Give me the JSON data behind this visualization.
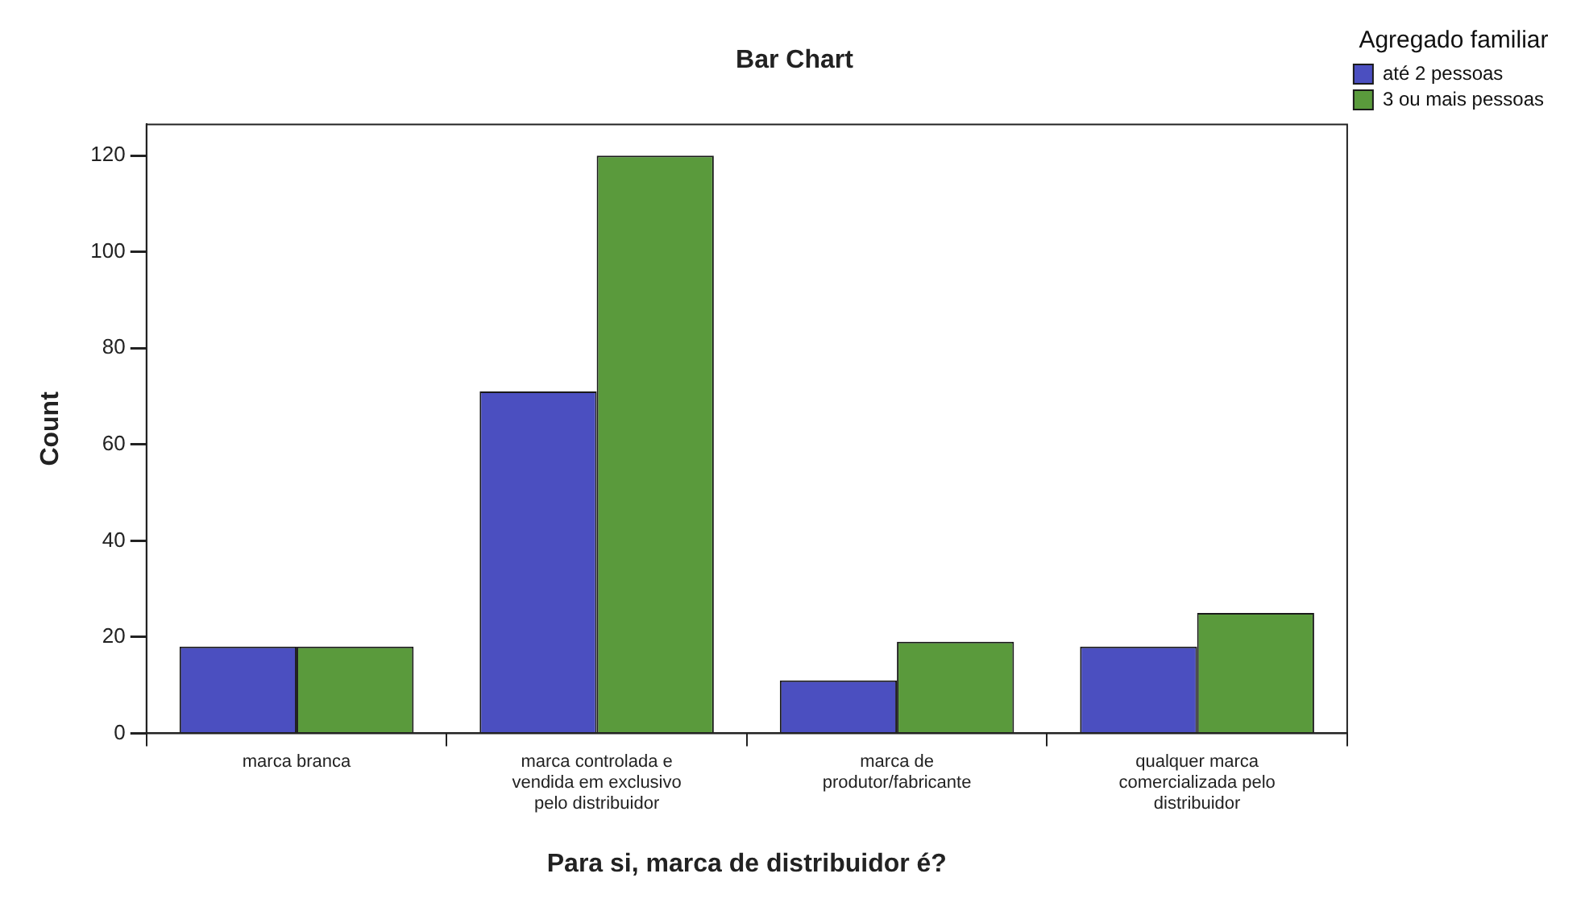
{
  "chart_data": {
    "type": "bar",
    "title": "Bar Chart",
    "xlabel": "Para si, marca de distribuidor é?",
    "ylabel": "Count",
    "legend_title": "Agregado familiar",
    "legend": "top right",
    "grid": false,
    "categories": [
      "marca branca",
      "marca controlada e vendida em exclusivo pelo distribuidor",
      "marca de produtor/fabricante",
      "qualquer marca comercializada pelo distribuidor"
    ],
    "series": [
      {
        "name": "até 2 pessoas",
        "color": "#4b4fc0",
        "values": [
          18,
          71,
          11,
          18
        ]
      },
      {
        "name": "3 ou mais pessoas",
        "color": "#5a9a3c",
        "values": [
          18,
          120,
          19,
          25
        ]
      }
    ],
    "ylim": [
      0,
      126.5
    ],
    "yticks": [
      0,
      20,
      40,
      60,
      80,
      100,
      120
    ]
  }
}
